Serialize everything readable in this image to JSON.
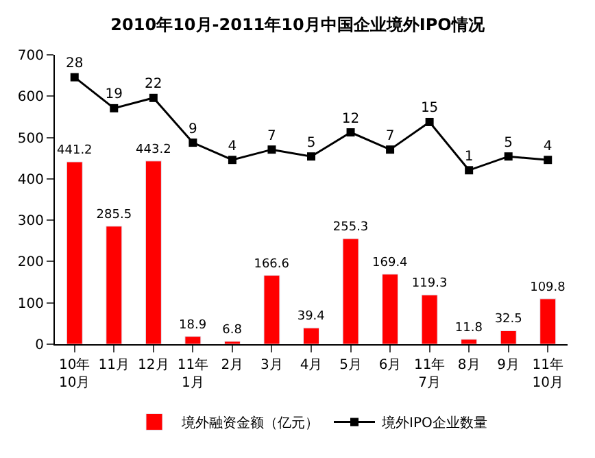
{
  "chart_data": {
    "type": "bar",
    "title": "2010年10月-2011年10月中国企业境外IPO情况",
    "categories": [
      "10年\n10月",
      "11月",
      "12月",
      "11年\n1月",
      "2月",
      "3月",
      "4月",
      "5月",
      "6月",
      "11年\n7月",
      "8月",
      "9月",
      "11年\n10月"
    ],
    "series": [
      {
        "name": "境外融资金额（亿元）",
        "color": "#ff0000",
        "values": [
          441.2,
          285.5,
          443.2,
          18.9,
          6.8,
          166.6,
          39.4,
          255.3,
          169.4,
          119.3,
          11.8,
          32.5,
          109.8
        ]
      },
      {
        "name": "境外IPO企业数量",
        "type": "line",
        "axis": "y2",
        "color": "#000000",
        "marker": "square",
        "values": [
          28,
          19,
          22,
          9,
          4,
          7,
          5,
          12,
          7,
          15,
          1,
          5,
          4
        ]
      }
    ],
    "ylim": [
      0,
      700
    ],
    "yticks": [
      0,
      100,
      200,
      300,
      400,
      500,
      600,
      700
    ],
    "y2lim": [
      -49.5,
      34.5
    ],
    "data_labels": true,
    "legend": "bottom"
  }
}
